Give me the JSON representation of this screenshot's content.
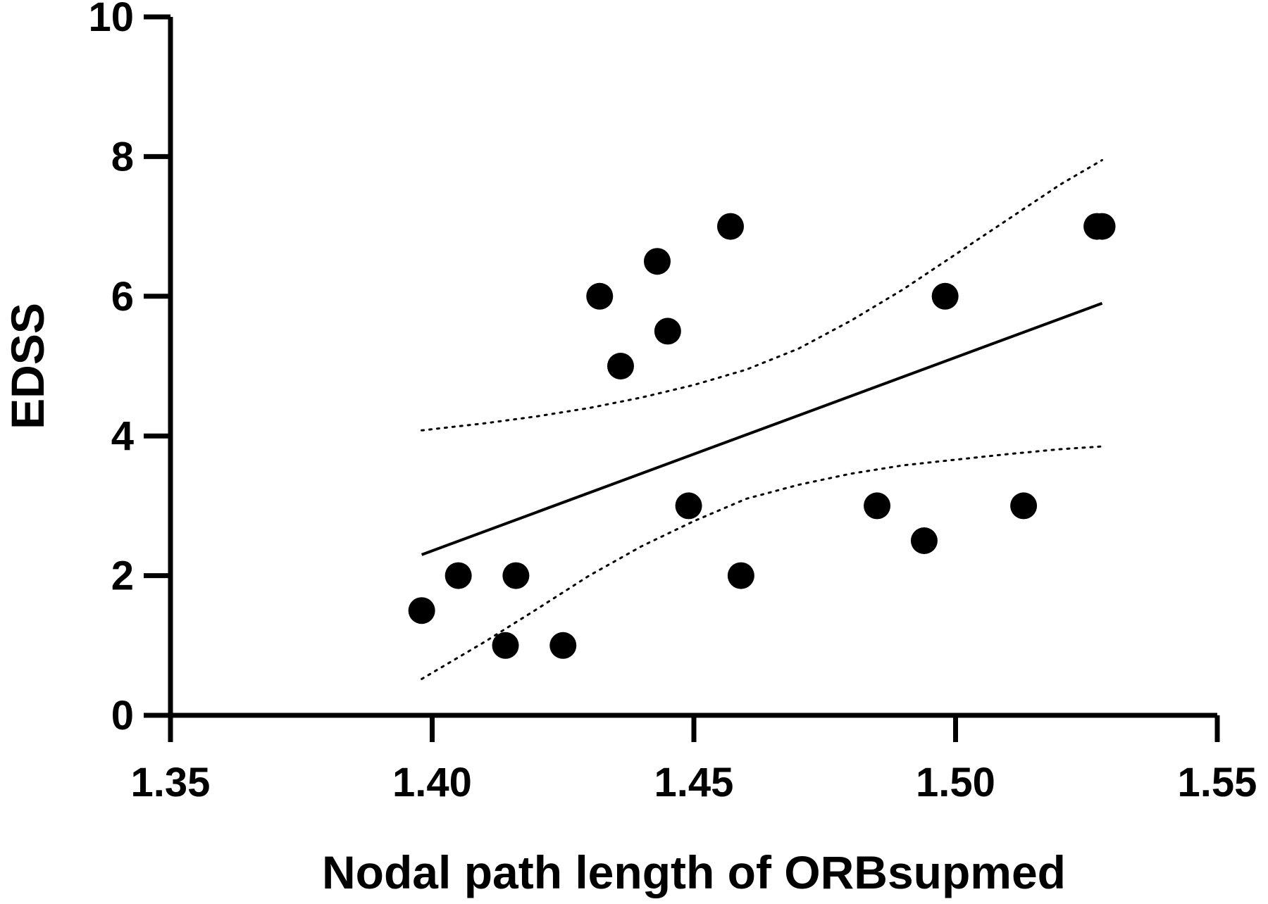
{
  "chart_data": {
    "type": "scatter",
    "title": "",
    "xlabel": "Nodal path length of ORBsupmed",
    "ylabel": "EDSS",
    "xlim": [
      1.35,
      1.55
    ],
    "ylim": [
      0,
      10
    ],
    "x_ticks": [
      "1.35",
      "1.40",
      "1.45",
      "1.50",
      "1.55"
    ],
    "y_ticks": [
      "0",
      "2",
      "4",
      "6",
      "8",
      "10"
    ],
    "grid": false,
    "legend": "none",
    "points": [
      {
        "x": 1.398,
        "y": 1.5
      },
      {
        "x": 1.405,
        "y": 2.0
      },
      {
        "x": 1.414,
        "y": 1.0
      },
      {
        "x": 1.416,
        "y": 2.0
      },
      {
        "x": 1.425,
        "y": 1.0
      },
      {
        "x": 1.432,
        "y": 6.0
      },
      {
        "x": 1.436,
        "y": 5.0
      },
      {
        "x": 1.443,
        "y": 6.5
      },
      {
        "x": 1.445,
        "y": 5.5
      },
      {
        "x": 1.449,
        "y": 3.0
      },
      {
        "x": 1.457,
        "y": 7.0
      },
      {
        "x": 1.459,
        "y": 2.0
      },
      {
        "x": 1.485,
        "y": 3.0
      },
      {
        "x": 1.494,
        "y": 2.5
      },
      {
        "x": 1.498,
        "y": 6.0
      },
      {
        "x": 1.513,
        "y": 3.0
      },
      {
        "x": 1.527,
        "y": 7.0
      },
      {
        "x": 1.528,
        "y": 7.0
      }
    ],
    "regression_line": {
      "x": [
        1.398,
        1.528
      ],
      "y": [
        2.3,
        5.9
      ]
    },
    "confidence_band_upper": {
      "x": [
        1.398,
        1.41,
        1.42,
        1.43,
        1.44,
        1.45,
        1.46,
        1.47,
        1.48,
        1.49,
        1.5,
        1.51,
        1.52,
        1.528
      ],
      "y": [
        4.08,
        4.18,
        4.28,
        4.4,
        4.55,
        4.73,
        4.95,
        5.25,
        5.65,
        6.1,
        6.6,
        7.1,
        7.6,
        7.95
      ]
    },
    "confidence_band_lower": {
      "x": [
        1.398,
        1.41,
        1.42,
        1.43,
        1.44,
        1.45,
        1.46,
        1.47,
        1.48,
        1.49,
        1.5,
        1.51,
        1.52,
        1.528
      ],
      "y": [
        0.52,
        1.05,
        1.52,
        2.0,
        2.42,
        2.78,
        3.1,
        3.3,
        3.46,
        3.58,
        3.66,
        3.74,
        3.81,
        3.85
      ]
    },
    "colors": {
      "points": "#000000",
      "line": "#000000",
      "axes": "#000000"
    }
  }
}
